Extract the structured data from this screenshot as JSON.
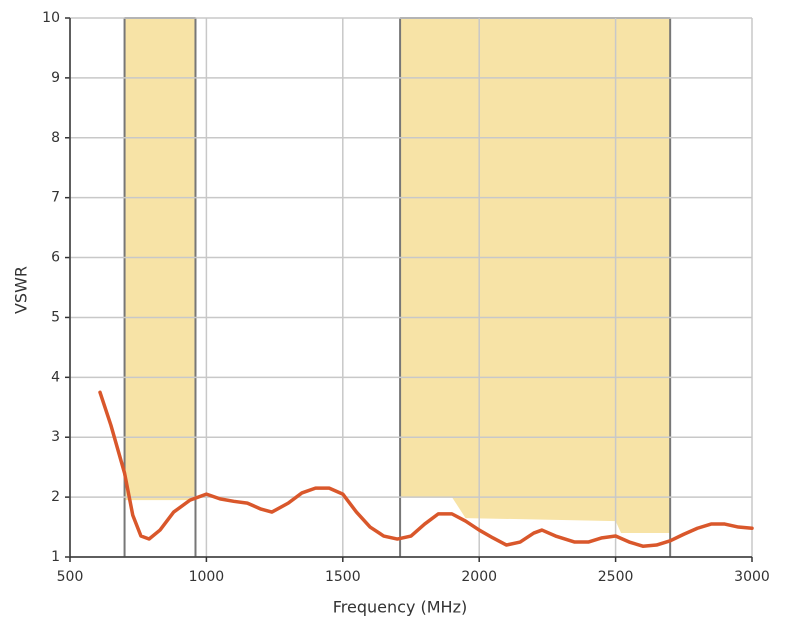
{
  "chart_data": {
    "type": "line",
    "xlabel": "Frequency (MHz)",
    "ylabel": "VSWR",
    "x": [
      610,
      650,
      700,
      730,
      760,
      790,
      830,
      880,
      940,
      1000,
      1050,
      1100,
      1150,
      1200,
      1240,
      1300,
      1350,
      1400,
      1450,
      1500,
      1550,
      1600,
      1650,
      1700,
      1750,
      1800,
      1850,
      1900,
      1950,
      2000,
      2050,
      2100,
      2150,
      2200,
      2230,
      2280,
      2350,
      2400,
      2450,
      2500,
      2550,
      2600,
      2650,
      2700,
      2750,
      2800,
      2850,
      2900,
      2950,
      3000
    ],
    "values": [
      3.75,
      3.2,
      2.4,
      1.7,
      1.35,
      1.3,
      1.45,
      1.75,
      1.95,
      2.05,
      1.97,
      1.93,
      1.9,
      1.8,
      1.75,
      1.9,
      2.07,
      2.15,
      2.15,
      2.05,
      1.75,
      1.5,
      1.35,
      1.3,
      1.35,
      1.55,
      1.72,
      1.72,
      1.6,
      1.45,
      1.32,
      1.2,
      1.25,
      1.4,
      1.45,
      1.35,
      1.25,
      1.25,
      1.32,
      1.35,
      1.25,
      1.18,
      1.2,
      1.27,
      1.38,
      1.48,
      1.55,
      1.55,
      1.5,
      1.48
    ],
    "color": "#d9572b",
    "bands": [
      {
        "x": [
          700,
          960
        ],
        "floor": [
          1.95,
          1.95
        ]
      },
      {
        "x": [
          1710,
          1900,
          1950,
          2500,
          2520,
          2700
        ],
        "floor": [
          2.0,
          2.0,
          1.65,
          1.6,
          1.4,
          1.4
        ]
      }
    ],
    "band_color": "#f7e3a6",
    "xlim": [
      500,
      3000
    ],
    "xticks": [
      500,
      1000,
      1500,
      2000,
      2500,
      3000
    ],
    "ylim": [
      1,
      10
    ],
    "yticks": [
      1,
      2,
      3,
      4,
      5,
      6,
      7,
      8,
      9,
      10
    ],
    "grid": true
  }
}
